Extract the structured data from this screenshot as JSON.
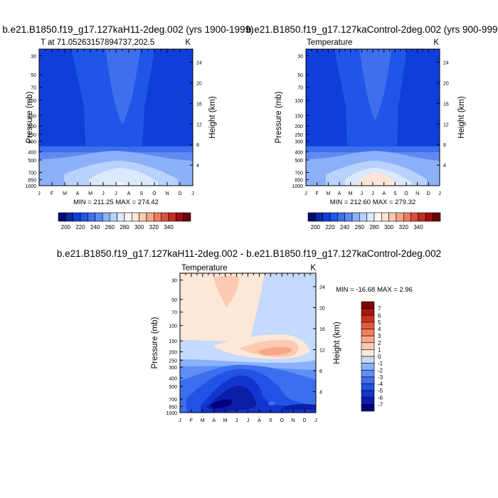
{
  "chart_data": [
    {
      "type": "heatmap",
      "title": "b.e21.B1850.f19_g17.127kaH11-2deg.002 (yrs 1900-1999)",
      "left_label": "T at 71.05263157894737,202.5",
      "right_label": "K",
      "ylabel": "Pressure (mb)",
      "y2label": "Height (km)",
      "x_ticks": [
        "J",
        "F",
        "M",
        "A",
        "M",
        "J",
        "J",
        "A",
        "S",
        "O",
        "N",
        "D",
        "J"
      ],
      "y_ticks": [
        "30",
        "50",
        "70",
        "100",
        "150",
        "200",
        "250",
        "300",
        "400",
        "500",
        "700",
        "850",
        "1000"
      ],
      "y2_ticks": [
        "24",
        "20",
        "16",
        "12",
        "8",
        "4"
      ],
      "minmax_text": "MIN = 211.25 MAX = 274.42",
      "summary": {
        "min": 211.25,
        "max": 274.42
      },
      "colorbar": {
        "orientation": "horizontal",
        "labels": [
          "200",
          "220",
          "240",
          "260",
          "280",
          "300",
          "320",
          "340"
        ]
      }
    },
    {
      "type": "heatmap",
      "title": "b.e21.B1850.f19_g17.127kaControl-2deg.002 (yrs 900-999)",
      "left_label": "Temperature",
      "right_label": "K",
      "ylabel": "Pressure (mb)",
      "y2label": "Height (km)",
      "x_ticks": [
        "J",
        "F",
        "M",
        "A",
        "M",
        "J",
        "J",
        "A",
        "S",
        "O",
        "N",
        "D",
        "J"
      ],
      "y_ticks": [
        "30",
        "50",
        "70",
        "100",
        "150",
        "200",
        "250",
        "300",
        "400",
        "500",
        "700",
        "850",
        "1000"
      ],
      "y2_ticks": [
        "24",
        "20",
        "16",
        "12",
        "8",
        "4"
      ],
      "minmax_text": "MIN = 212.60 MAX = 279.32",
      "summary": {
        "min": 212.6,
        "max": 279.32
      },
      "colorbar": {
        "orientation": "horizontal",
        "labels": [
          "200",
          "220",
          "240",
          "260",
          "280",
          "300",
          "320",
          "340"
        ]
      }
    },
    {
      "type": "heatmap",
      "title": "b.e21.B1850.f19_g17.127kaH11-2deg.002 - b.e21.B1850.f19_g17.127kaControl-2deg.002",
      "left_label": "Temperature",
      "right_label": "K",
      "ylabel": "Pressure (mb)",
      "y2label": "Height (km)",
      "x_ticks": [
        "J",
        "F",
        "M",
        "A",
        "M",
        "J",
        "J",
        "A",
        "S",
        "O",
        "N",
        "D",
        "J"
      ],
      "y_ticks": [
        "30",
        "50",
        "70",
        "100",
        "150",
        "200",
        "250",
        "300",
        "400",
        "500",
        "700",
        "850",
        "1000"
      ],
      "y2_ticks": [
        "24",
        "20",
        "16",
        "12",
        "8",
        "4"
      ],
      "minmax_text": "MIN = -16.68 MAX =   2.96",
      "summary": {
        "min": -16.68,
        "max": 2.96
      },
      "colorbar": {
        "orientation": "vertical",
        "labels": [
          "7",
          "6",
          "5",
          "4",
          "3",
          "2",
          "1",
          "0",
          "-1",
          "-2",
          "-3",
          "-4",
          "-5",
          "-6",
          "-7"
        ]
      }
    }
  ],
  "colors": {
    "abs_bands": [
      "#050a6e",
      "#0d2aa3",
      "#0f3fd8",
      "#1f55e8",
      "#3f6fed",
      "#5e8af2",
      "#8cb0f7",
      "#b8d2fb",
      "#dbe9fd",
      "#f7f7f7",
      "#fde5d5",
      "#fbc9ad",
      "#f5a685",
      "#ec7c5e",
      "#dd4f3c",
      "#c52a23",
      "#9e0e12",
      "#6b0304"
    ],
    "diff_bands": [
      "#00007f",
      "#0a1ea8",
      "#1335cf",
      "#2253e6",
      "#3c6ff0",
      "#5f8ff6",
      "#8cb1fb",
      "#c4dafe",
      "#fde8d7",
      "#fccab0",
      "#f8a888",
      "#ef8060",
      "#e25a3d",
      "#c93422",
      "#a8140f",
      "#7f0000"
    ],
    "bg_abs": "#1f55e8"
  }
}
